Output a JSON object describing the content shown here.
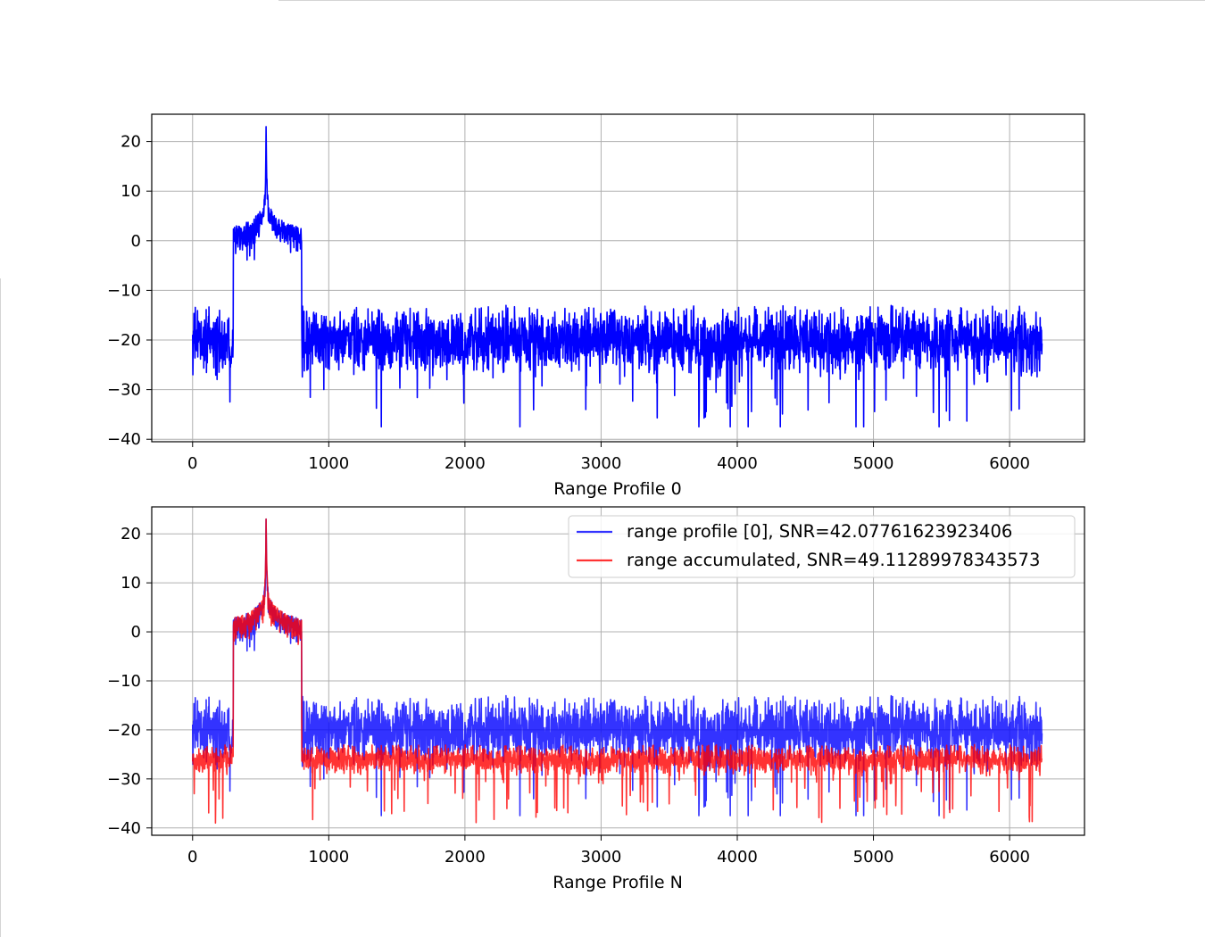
{
  "chart_data": [
    {
      "type": "line",
      "title": "",
      "xlabel": "Range Profile 0",
      "ylabel": "",
      "xlim": [
        -300,
        6550
      ],
      "ylim": [
        -40.5,
        25.5
      ],
      "xticks": [
        0,
        1000,
        2000,
        3000,
        4000,
        5000,
        6000
      ],
      "yticks": [
        -40,
        -30,
        -20,
        -10,
        0,
        10,
        20
      ],
      "xtick_labels": [
        "0",
        "1000",
        "2000",
        "3000",
        "4000",
        "5000",
        "6000"
      ],
      "ytick_labels": [
        "−40",
        "−30",
        "−20",
        "−10",
        "0",
        "10",
        "20"
      ],
      "grid": true,
      "legend": null,
      "series": [
        {
          "color": "#0000ff",
          "n_points": 6240,
          "noise_floor_mean": -20,
          "noise_floor_min": -37.5,
          "noise_floor_max": -13,
          "signal_band": [
            300,
            800
          ],
          "signal_step_level": 2.5,
          "peak": {
            "x": 540,
            "y": 23
          }
        }
      ]
    },
    {
      "type": "line",
      "title": "",
      "xlabel": "Range Profile N",
      "ylabel": "",
      "xlim": [
        -300,
        6550
      ],
      "ylim": [
        -41.5,
        25.5
      ],
      "xticks": [
        0,
        1000,
        2000,
        3000,
        4000,
        5000,
        6000
      ],
      "yticks": [
        -40,
        -30,
        -20,
        -10,
        0,
        10,
        20
      ],
      "xtick_labels": [
        "0",
        "1000",
        "2000",
        "3000",
        "4000",
        "5000",
        "6000"
      ],
      "ytick_labels": [
        "−40",
        "−30",
        "−20",
        "−10",
        "0",
        "10",
        "20"
      ],
      "grid": true,
      "legend": "upper right",
      "series": [
        {
          "name": "range profile [0], SNR=42.07761623923406",
          "color": "#0000ff",
          "alpha": 0.8,
          "n_points": 6240,
          "noise_floor_mean": -20,
          "noise_floor_min": -37.5,
          "noise_floor_max": -13,
          "peak": {
            "x": 540,
            "y": 23
          }
        },
        {
          "name": "range accumulated, SNR=49.11289978343573",
          "color": "#ff0000",
          "alpha": 0.8,
          "n_points": 6240,
          "noise_floor_mean": -26,
          "noise_floor_min": -39,
          "noise_floor_max": -23,
          "signal_band": [
            300,
            800
          ],
          "signal_step_level": 2.5,
          "peak": {
            "x": 540,
            "y": 23
          }
        }
      ]
    }
  ]
}
